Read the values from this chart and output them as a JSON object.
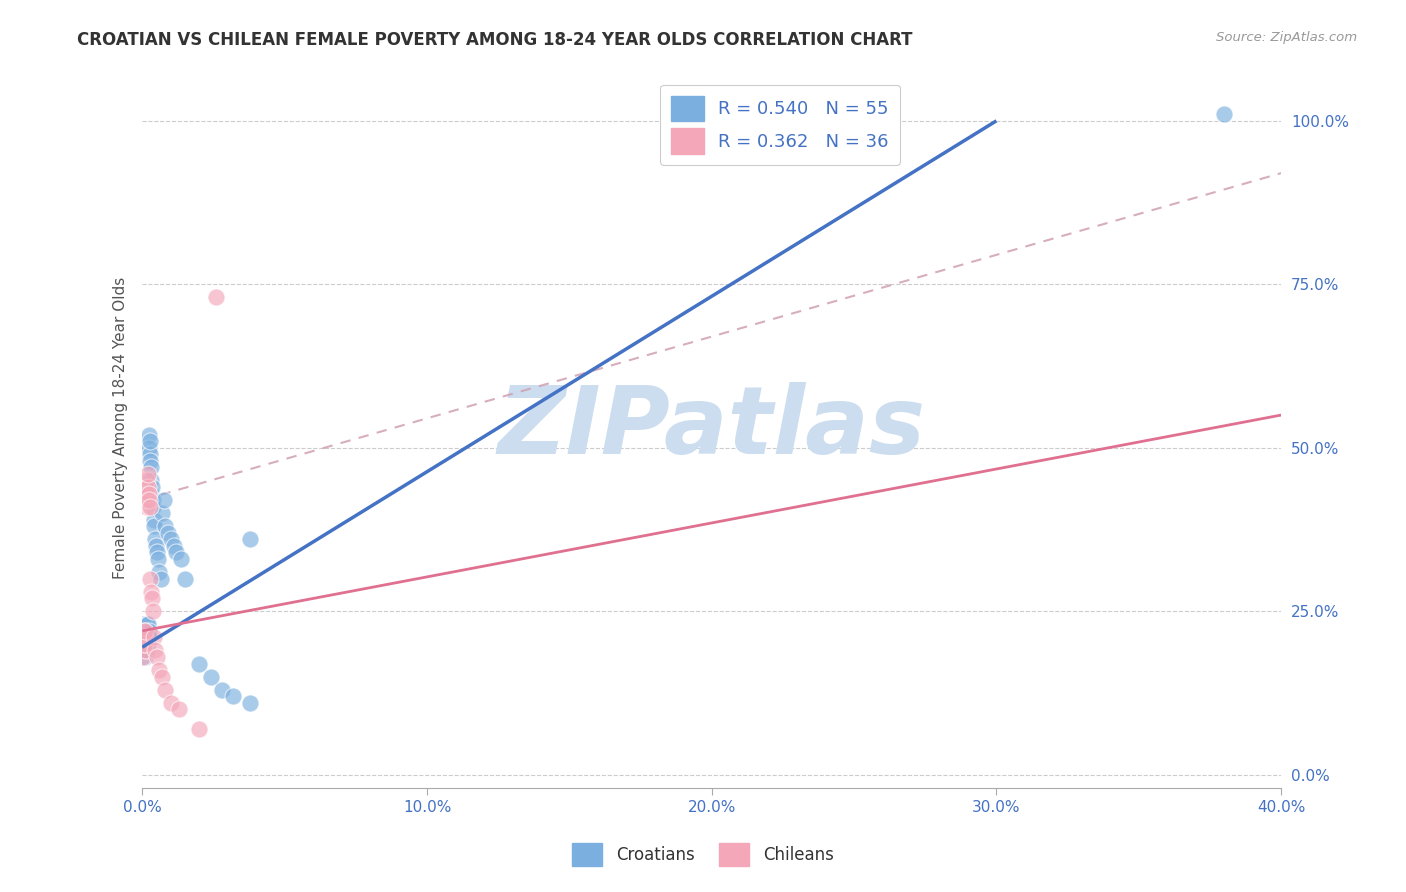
{
  "title": "CROATIAN VS CHILEAN FEMALE POVERTY AMONG 18-24 YEAR OLDS CORRELATION CHART",
  "source": "Source: ZipAtlas.com",
  "ylabel": "Female Poverty Among 18-24 Year Olds",
  "xlim": [
    0.0,
    0.4
  ],
  "ylim": [
    -0.02,
    1.08
  ],
  "x_tick_vals": [
    0.0,
    0.1,
    0.2,
    0.3,
    0.4
  ],
  "x_tick_labels": [
    "0.0%",
    "10.0%",
    "20.0%",
    "30.0%",
    "40.0%"
  ],
  "y_tick_vals": [
    0.0,
    0.25,
    0.5,
    0.75,
    1.0
  ],
  "y_tick_labels": [
    "0.0%",
    "25.0%",
    "50.0%",
    "75.0%",
    "100.0%"
  ],
  "blue_line_color": "#4472c4",
  "pink_line_color": "#e07090",
  "dashed_line_color": "#d0a0b0",
  "scatter_blue": "#7aafdf",
  "scatter_pink": "#f4a7b9",
  "watermark_color": "#ccddf0",
  "tick_color": "#4472c4",
  "grid_color": "#cccccc",
  "title_color": "#333333",
  "source_color": "#999999",
  "ylabel_color": "#555555",
  "legend_edge": "#cccccc",
  "legend_label_color": "#4472c4",
  "blue_line_x0": 0.0,
  "blue_line_y0": 0.195,
  "blue_line_x1": 0.3,
  "blue_line_y1": 1.0,
  "pink_line_x0": 0.0,
  "pink_line_y0": 0.22,
  "pink_line_x1": 0.4,
  "pink_line_y1": 0.55,
  "dashed_line_x0": 0.0,
  "dashed_line_y0": 0.42,
  "dashed_line_x1": 0.4,
  "dashed_line_y1": 0.92,
  "cr_x": [
    0.0002,
    0.0003,
    0.0005,
    0.0007,
    0.0008,
    0.001,
    0.001,
    0.0011,
    0.0012,
    0.0013,
    0.0014,
    0.0015,
    0.0016,
    0.0017,
    0.0018,
    0.0019,
    0.002,
    0.0021,
    0.0022,
    0.0023,
    0.0024,
    0.0025,
    0.0026,
    0.0027,
    0.0028,
    0.0029,
    0.003,
    0.0032,
    0.0034,
    0.0036,
    0.0038,
    0.004,
    0.0042,
    0.0045,
    0.0048,
    0.005,
    0.0055,
    0.006,
    0.0065,
    0.007,
    0.0075,
    0.008,
    0.009,
    0.01,
    0.011,
    0.012,
    0.0135,
    0.015,
    0.02,
    0.024,
    0.028,
    0.032,
    0.038,
    0.038,
    0.38
  ],
  "cr_y": [
    0.21,
    0.23,
    0.2,
    0.22,
    0.19,
    0.21,
    0.18,
    0.2,
    0.22,
    0.19,
    0.21,
    0.2,
    0.23,
    0.22,
    0.19,
    0.21,
    0.2,
    0.23,
    0.22,
    0.21,
    0.52,
    0.5,
    0.49,
    0.51,
    0.48,
    0.47,
    0.45,
    0.43,
    0.44,
    0.42,
    0.41,
    0.39,
    0.38,
    0.36,
    0.35,
    0.34,
    0.33,
    0.31,
    0.3,
    0.4,
    0.42,
    0.38,
    0.37,
    0.36,
    0.35,
    0.34,
    0.33,
    0.3,
    0.17,
    0.15,
    0.13,
    0.12,
    0.11,
    0.36,
    1.01
  ],
  "ch_x": [
    0.0002,
    0.0003,
    0.0004,
    0.0005,
    0.0006,
    0.0007,
    0.0008,
    0.0009,
    0.001,
    0.0011,
    0.0012,
    0.0013,
    0.0014,
    0.0015,
    0.0016,
    0.0017,
    0.0018,
    0.0019,
    0.002,
    0.0022,
    0.0024,
    0.0026,
    0.0028,
    0.003,
    0.0033,
    0.0036,
    0.004,
    0.0045,
    0.005,
    0.006,
    0.007,
    0.008,
    0.01,
    0.013,
    0.02,
    0.026
  ],
  "ch_y": [
    0.21,
    0.2,
    0.18,
    0.2,
    0.22,
    0.21,
    0.19,
    0.2,
    0.21,
    0.22,
    0.43,
    0.42,
    0.44,
    0.41,
    0.45,
    0.43,
    0.42,
    0.44,
    0.46,
    0.43,
    0.42,
    0.41,
    0.3,
    0.28,
    0.27,
    0.25,
    0.21,
    0.19,
    0.18,
    0.16,
    0.15,
    0.13,
    0.11,
    0.1,
    0.07,
    0.73
  ]
}
